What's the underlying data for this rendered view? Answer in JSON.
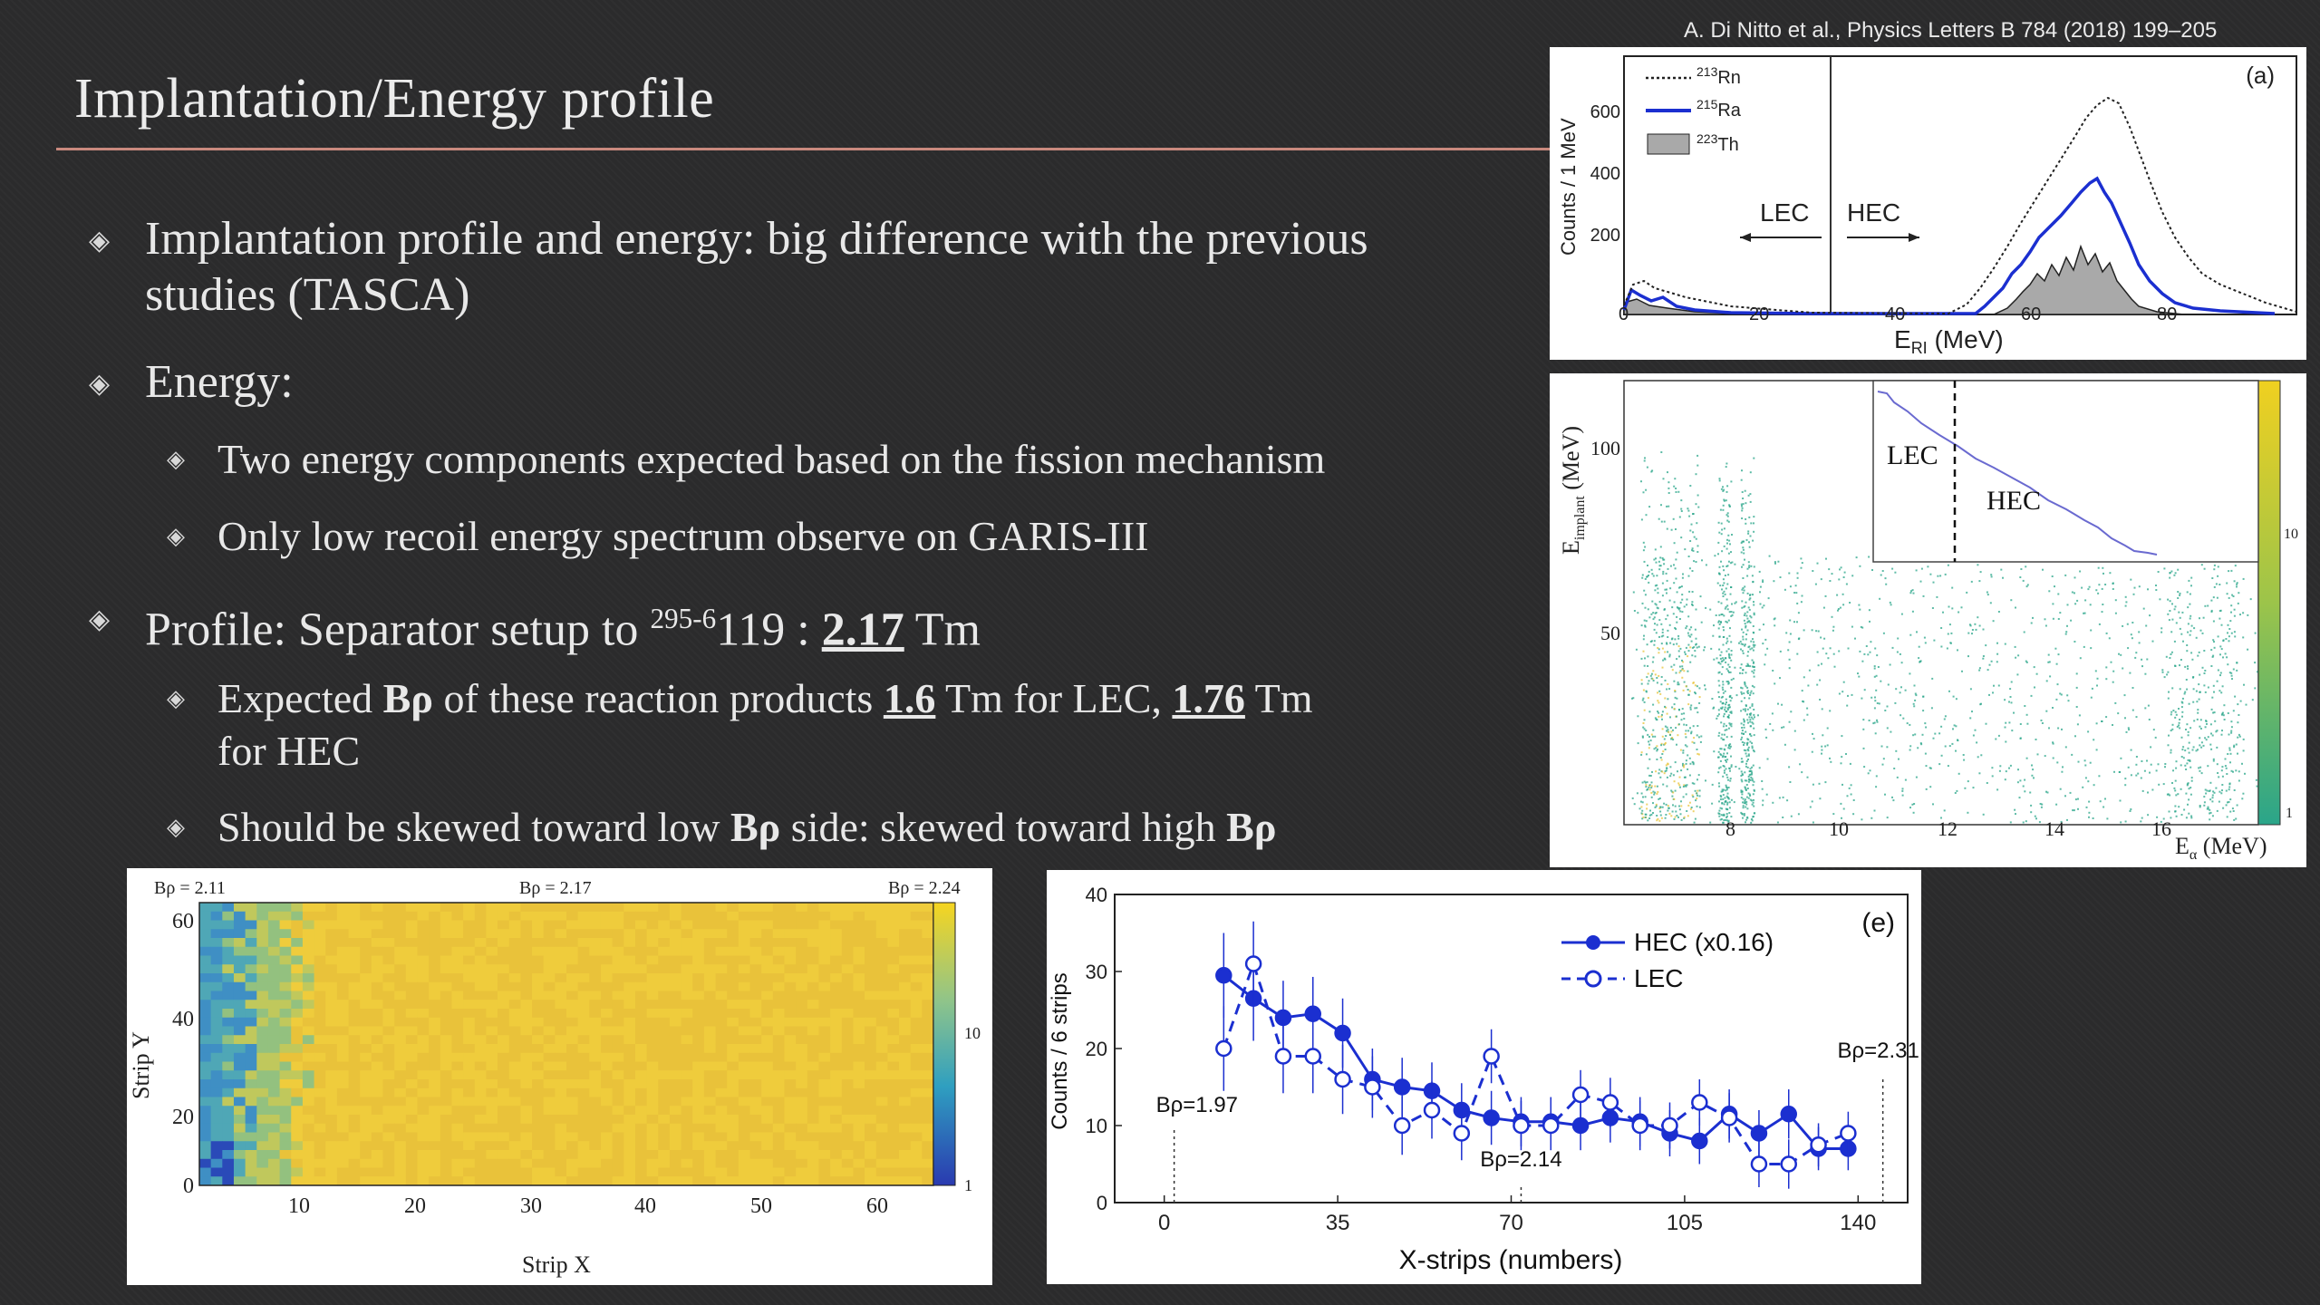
{
  "slide": {
    "title": "Implantation/Energy profile",
    "citation": "A. Di Nitto et al., Physics Letters B 784 (2018) 199–205"
  },
  "bullets": {
    "b1_text": "Implantation profile and energy: big difference with the previous studies (TASCA)",
    "b2_text": "Energy:",
    "b2_1_text": "Two energy components expected based on the fission mechanism",
    "b2_2_text": "Only low recoil energy spectrum observe on GARIS-III",
    "b3_prefix": "Profile: Separator setup to ",
    "b3_sup": "295-6",
    "b3_element": "119 : ",
    "b3_value": "2.17",
    "b3_unit": " Tm",
    "b3_1_a": "Expected ",
    "b3_1_b": "Bρ",
    "b3_1_c": " of these reaction products ",
    "b3_1_v1": "1.6",
    "b3_1_d": " Tm for LEC, ",
    "b3_1_v2": "1.76",
    "b3_1_e": " Tm",
    "b3_1_f": "for HEC",
    "b3_2_a": "Should be skewed toward low ",
    "b3_2_b": "Bρ",
    "b3_2_c": " side: skewed toward high ",
    "b3_2_d": "Bρ"
  },
  "colors": {
    "accent_rule": "#c9897e",
    "hec_blue": "#1b2fd0",
    "lec_blue": "#1b2fd0",
    "scatter_teal": "#2aa58a",
    "heat_yellow": "#e8c336",
    "heat_blue": "#2457b8"
  },
  "panel_a": {
    "panel_label": "(a)",
    "ylabel": "Counts / 1 MeV",
    "xlabel_main": "E",
    "xlabel_sub": "RI",
    "xlabel_unit": " (MeV)",
    "lec_label": "LEC",
    "hec_label": "HEC",
    "legend": [
      {
        "mass": "213",
        "element": "Rn"
      },
      {
        "mass": "215",
        "element": "Ra"
      },
      {
        "mass": "223",
        "element": "Th"
      }
    ],
    "xticks": [
      "0",
      "20",
      "40",
      "60",
      "80"
    ],
    "yticks": [
      "200",
      "400",
      "600"
    ]
  },
  "panel_b": {
    "ylabel_main": "E",
    "ylabel_sub": "implant",
    "ylabel_unit": " (MeV)",
    "xlabel_main": "E",
    "xlabel_sub": "α",
    "xlabel_unit": " (MeV)",
    "xticks": [
      "8",
      "10",
      "12",
      "14",
      "16"
    ],
    "yticks": [
      "50",
      "100"
    ],
    "colorbar_ticks": [
      "10",
      "1"
    ],
    "inset_lec": "LEC",
    "inset_hec": "HEC"
  },
  "panel_c": {
    "top_left": "Bρ = 2.11",
    "top_mid": "Bρ = 2.17",
    "top_right": "Bρ = 2.24",
    "xlabel": "Strip X",
    "ylabel": "Strip Y",
    "xticks": [
      "10",
      "20",
      "30",
      "40",
      "50",
      "60"
    ],
    "yticks": [
      "0",
      "20",
      "40",
      "60"
    ],
    "colorbar_ticks": [
      "10",
      "1"
    ]
  },
  "chart_data": {
    "type": "line",
    "panel_label": "(e)",
    "xlabel": "X-strips (numbers)",
    "ylabel": "Counts / 6 strips",
    "xlim": [
      -10,
      150
    ],
    "ylim": [
      0,
      40
    ],
    "xticks": [
      0,
      35,
      70,
      105,
      140
    ],
    "yticks": [
      0,
      10,
      20,
      30,
      40
    ],
    "x": [
      12,
      18,
      24,
      30,
      36,
      42,
      48,
      54,
      60,
      66,
      72,
      78,
      84,
      90,
      96,
      102,
      108,
      114,
      120,
      126,
      132,
      138
    ],
    "series": [
      {
        "name": "HEC (x0.16)",
        "style": "solid-filled",
        "values": [
          29.5,
          26.5,
          24,
          24.5,
          22,
          16,
          15,
          14.5,
          12,
          11,
          10.5,
          10.5,
          10,
          11,
          10.5,
          9,
          8,
          11.5,
          9,
          11.5,
          7,
          7
        ]
      },
      {
        "name": "LEC",
        "style": "dashed-open",
        "values": [
          20,
          31,
          19,
          19,
          16,
          15,
          10,
          12,
          9,
          19,
          10,
          10,
          14,
          13,
          10,
          10,
          13,
          11,
          5,
          5,
          7.5,
          9
        ]
      }
    ],
    "errors": [
      5.5,
      5.5,
      4.8,
      4.8,
      4.5,
      4,
      3.8,
      3.7,
      3.5,
      3.5,
      3.2,
      3.2,
      3.2,
      3.2,
      3.2,
      3,
      3,
      3.2,
      3,
      3.2,
      2.8,
      2.8
    ],
    "annotations": [
      {
        "text": "Bρ=1.97",
        "x": 2
      },
      {
        "text": "Bρ=2.14",
        "x": 72
      },
      {
        "text": "Bρ=2.31",
        "x": 145
      }
    ]
  }
}
